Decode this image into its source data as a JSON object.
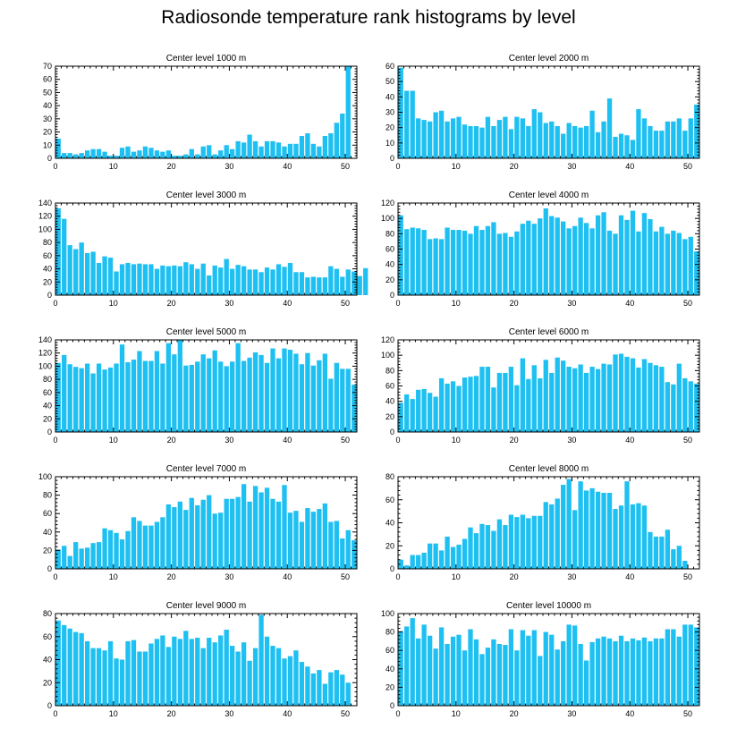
{
  "title": "Radiosonde temperature rank histograms by level",
  "colors": {
    "bar": "#1ec0f2",
    "axis": "#000000",
    "background": "#ffffff"
  },
  "chart_data": [
    {
      "type": "bar",
      "title": "Center level 1000 m",
      "xlim": [
        0,
        52
      ],
      "ylim": [
        0,
        70
      ],
      "xticks": [
        0,
        10,
        20,
        30,
        40,
        50
      ],
      "yticks": [
        0,
        10,
        20,
        30,
        40,
        50,
        60,
        70
      ],
      "values": [
        15,
        4,
        4,
        3,
        4,
        6,
        7,
        7,
        5,
        2,
        2,
        8,
        9,
        5,
        6,
        9,
        8,
        6,
        5,
        6,
        2,
        2,
        3,
        7,
        3,
        9,
        10,
        3,
        6,
        10,
        7,
        13,
        12,
        18,
        13,
        9,
        13,
        13,
        12,
        9,
        11,
        11,
        17,
        19,
        11,
        9,
        17,
        19,
        27,
        34,
        70
      ]
    },
    {
      "type": "bar",
      "title": "Center level 2000 m",
      "xlim": [
        0,
        52
      ],
      "ylim": [
        0,
        60
      ],
      "xticks": [
        0,
        10,
        20,
        30,
        40,
        50
      ],
      "yticks": [
        0,
        10,
        20,
        30,
        40,
        50,
        60
      ],
      "values": [
        59,
        44,
        44,
        26,
        25,
        24,
        30,
        31,
        24,
        26,
        27,
        22,
        21,
        21,
        20,
        27,
        21,
        25,
        27,
        19,
        27,
        26,
        21,
        32,
        30,
        23,
        24,
        21,
        16,
        23,
        21,
        20,
        21,
        31,
        17,
        24,
        39,
        14,
        16,
        15,
        12,
        32,
        26,
        21,
        18,
        18,
        24,
        24,
        26,
        18,
        26,
        35
      ]
    },
    {
      "type": "bar",
      "title": "Center level 3000 m",
      "xlim": [
        0,
        52
      ],
      "ylim": [
        0,
        140
      ],
      "xticks": [
        0,
        10,
        20,
        30,
        40,
        50
      ],
      "yticks": [
        0,
        20,
        40,
        60,
        80,
        100,
        120,
        140
      ],
      "values": [
        132,
        116,
        76,
        70,
        80,
        64,
        66,
        49,
        59,
        57,
        36,
        47,
        49,
        47,
        48,
        47,
        47,
        40,
        45,
        44,
        45,
        44,
        50,
        47,
        40,
        48,
        30,
        45,
        42,
        55,
        40,
        46,
        44,
        39,
        39,
        35,
        42,
        39,
        47,
        43,
        49,
        35,
        35,
        27,
        28,
        27,
        27,
        44,
        40,
        28,
        39,
        36,
        29,
        41
      ]
    },
    {
      "type": "bar",
      "title": "Center level 4000 m",
      "xlim": [
        0,
        52
      ],
      "ylim": [
        0,
        120
      ],
      "xticks": [
        0,
        10,
        20,
        30,
        40,
        50
      ],
      "yticks": [
        0,
        20,
        40,
        60,
        80,
        100,
        120
      ],
      "values": [
        104,
        86,
        88,
        87,
        85,
        73,
        74,
        73,
        88,
        85,
        85,
        84,
        80,
        90,
        85,
        90,
        95,
        80,
        81,
        76,
        83,
        93,
        97,
        93,
        100,
        113,
        103,
        101,
        96,
        87,
        90,
        101,
        94,
        87,
        104,
        108,
        84,
        80,
        104,
        98,
        110,
        83,
        107,
        99,
        83,
        89,
        80,
        84,
        81,
        73,
        76,
        57
      ]
    },
    {
      "type": "bar",
      "title": "Center level 5000 m",
      "xlim": [
        0,
        52
      ],
      "ylim": [
        0,
        140
      ],
      "xticks": [
        0,
        10,
        20,
        30,
        40,
        50
      ],
      "yticks": [
        0,
        20,
        40,
        60,
        80,
        100,
        120,
        140
      ],
      "values": [
        105,
        117,
        103,
        99,
        97,
        104,
        89,
        104,
        95,
        98,
        104,
        133,
        106,
        110,
        123,
        108,
        108,
        123,
        104,
        135,
        118,
        140,
        101,
        102,
        107,
        118,
        112,
        124,
        107,
        100,
        107,
        135,
        108,
        113,
        121,
        117,
        105,
        127,
        112,
        127,
        125,
        119,
        103,
        120,
        101,
        109,
        119,
        81,
        105,
        96,
        96,
        72
      ]
    },
    {
      "type": "bar",
      "title": "Center level 6000 m",
      "xlim": [
        0,
        52
      ],
      "ylim": [
        0,
        120
      ],
      "xticks": [
        0,
        10,
        20,
        30,
        40,
        50
      ],
      "yticks": [
        0,
        20,
        40,
        60,
        80,
        100,
        120
      ],
      "values": [
        38,
        49,
        43,
        55,
        56,
        51,
        46,
        70,
        63,
        66,
        60,
        71,
        72,
        73,
        85,
        85,
        58,
        77,
        77,
        85,
        61,
        96,
        69,
        87,
        70,
        94,
        77,
        97,
        93,
        85,
        83,
        88,
        77,
        85,
        82,
        89,
        88,
        101,
        102,
        98,
        96,
        84,
        95,
        90,
        87,
        85,
        65,
        62,
        89,
        70,
        66,
        63
      ]
    },
    {
      "type": "bar",
      "title": "Center level 7000 m",
      "xlim": [
        0,
        52
      ],
      "ylim": [
        0,
        100
      ],
      "xticks": [
        0,
        10,
        20,
        30,
        40,
        50
      ],
      "yticks": [
        0,
        20,
        40,
        60,
        80,
        100
      ],
      "values": [
        21,
        25,
        14,
        29,
        22,
        23,
        28,
        29,
        44,
        42,
        39,
        32,
        41,
        56,
        52,
        47,
        47,
        51,
        56,
        70,
        67,
        73,
        64,
        77,
        69,
        75,
        80,
        60,
        61,
        76,
        76,
        78,
        92,
        73,
        90,
        83,
        88,
        76,
        73,
        91,
        61,
        63,
        51,
        66,
        62,
        65,
        71,
        51,
        52,
        33,
        42,
        31
      ]
    },
    {
      "type": "bar",
      "title": "Center level 8000 m",
      "xlim": [
        0,
        52
      ],
      "ylim": [
        0,
        80
      ],
      "xticks": [
        0,
        10,
        20,
        30,
        40,
        50
      ],
      "yticks": [
        0,
        20,
        40,
        60,
        80
      ],
      "values": [
        8,
        3,
        12,
        12,
        14,
        22,
        22,
        16,
        28,
        19,
        21,
        26,
        36,
        31,
        39,
        38,
        33,
        43,
        38,
        47,
        45,
        47,
        44,
        46,
        46,
        58,
        56,
        61,
        73,
        78,
        51,
        76,
        68,
        70,
        67,
        66,
        66,
        52,
        55,
        76,
        56,
        57,
        55,
        32,
        28,
        28,
        34,
        17,
        20,
        7
      ]
    },
    {
      "type": "bar",
      "title": "Center level 9000 m",
      "xlim": [
        0,
        52
      ],
      "ylim": [
        0,
        80
      ],
      "xticks": [
        0,
        10,
        20,
        30,
        40,
        50
      ],
      "yticks": [
        0,
        20,
        40,
        60,
        80
      ],
      "values": [
        74,
        70,
        67,
        64,
        63,
        56,
        50,
        50,
        48,
        56,
        41,
        40,
        56,
        57,
        47,
        47,
        54,
        58,
        61,
        51,
        60,
        58,
        65,
        58,
        59,
        50,
        59,
        55,
        61,
        66,
        52,
        47,
        55,
        39,
        50,
        79,
        60,
        52,
        50,
        41,
        43,
        48,
        38,
        34,
        28,
        31,
        19,
        29,
        31,
        27,
        20
      ]
    },
    {
      "type": "bar",
      "title": "Center level 10000 m",
      "xlim": [
        0,
        52
      ],
      "ylim": [
        0,
        100
      ],
      "xticks": [
        0,
        10,
        20,
        30,
        40,
        50
      ],
      "yticks": [
        0,
        20,
        40,
        60,
        80,
        100
      ],
      "values": [
        81,
        86,
        95,
        73,
        88,
        76,
        62,
        85,
        67,
        75,
        77,
        60,
        83,
        72,
        56,
        63,
        72,
        67,
        66,
        83,
        60,
        82,
        76,
        82,
        54,
        80,
        77,
        61,
        70,
        88,
        87,
        67,
        49,
        69,
        73,
        75,
        73,
        70,
        76,
        70,
        73,
        71,
        74,
        70,
        73,
        73,
        83,
        83,
        75,
        88,
        88,
        85
      ]
    }
  ]
}
